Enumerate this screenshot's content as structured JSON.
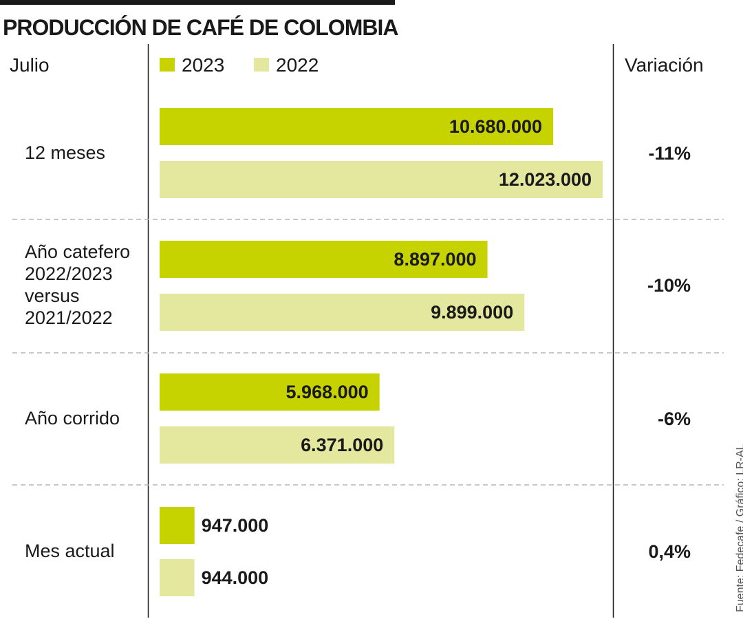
{
  "title": "PRODUCCIÓN DE CAFÉ DE COLOMBIA",
  "source": "Fuente: Fedecafe / Gráfico: LR-AL",
  "colors": {
    "series_2023": "#c6d300",
    "series_2022": "#e4e89e",
    "text": "#1a1a1a",
    "grid": "#b5b5b5"
  },
  "chart_data": {
    "type": "bar",
    "orientation": "horizontal",
    "category_header": "Julio",
    "variation_header": "Variación",
    "categories": [
      [
        "12 meses"
      ],
      [
        "Año catefero",
        "2022/2023",
        "versus",
        "2021/2022"
      ],
      [
        "Año corrido"
      ],
      [
        "Mes actual"
      ]
    ],
    "series": [
      {
        "name": "2023",
        "values": [
          10680000,
          8897000,
          5968000,
          947000
        ],
        "labels": [
          "10.680.000",
          "8.897.000",
          "5.968.000",
          "947.000"
        ]
      },
      {
        "name": "2022",
        "values": [
          12023000,
          9899000,
          6371000,
          944000
        ],
        "labels": [
          "12.023.000",
          "9.899.000",
          "6.371.000",
          "944.000"
        ]
      }
    ],
    "variation": [
      "-11%",
      "-10%",
      "-6%",
      "0,4%"
    ],
    "xlim": [
      0,
      12023000
    ],
    "legend": "top",
    "grid": false
  }
}
